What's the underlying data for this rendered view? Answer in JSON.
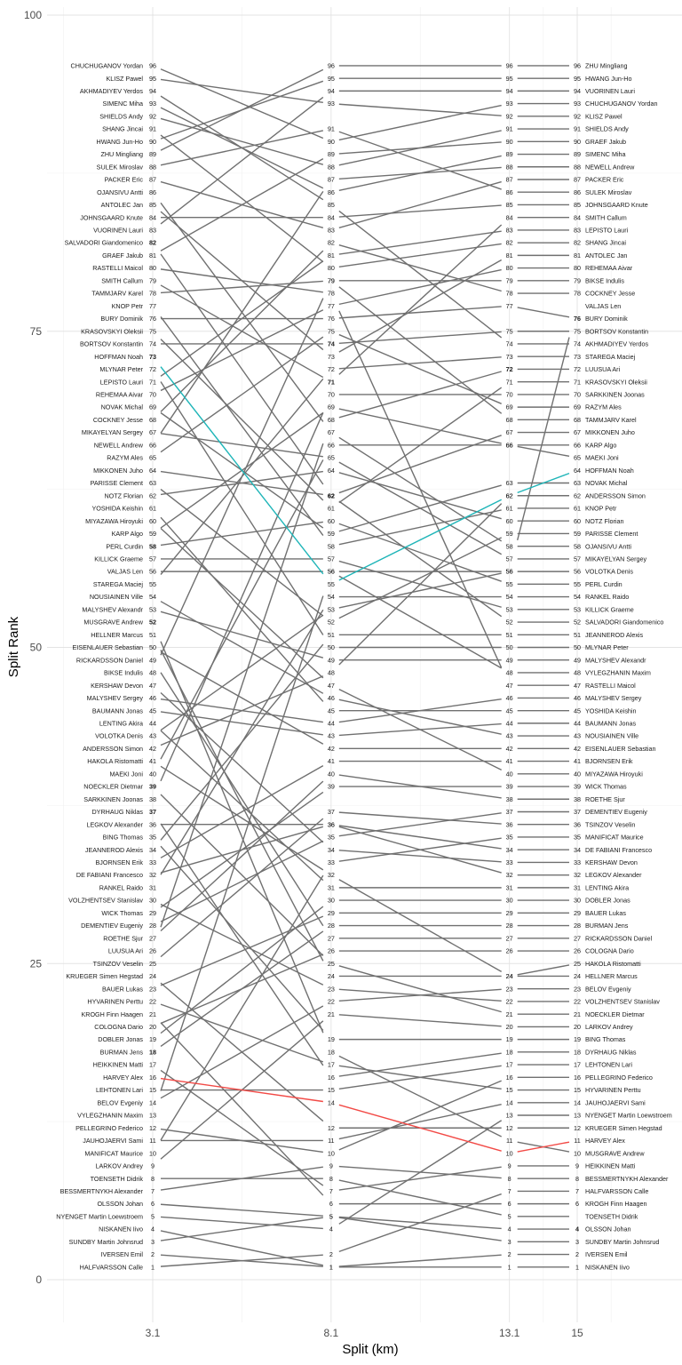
{
  "chart_data": {
    "type": "line",
    "title": "",
    "xlabel": "Split (km)",
    "ylabel": "Split Rank",
    "x": [
      3.1,
      8.1,
      13.1,
      15
    ],
    "x_tick_labels": [
      "3.1",
      "8.1",
      "13.1",
      "15"
    ],
    "xlim": [
      3.1,
      15
    ],
    "ylim": [
      0,
      100
    ],
    "y_ticks": [
      0,
      25,
      50,
      75,
      100
    ],
    "grid": true,
    "legend": "none",
    "colors": {
      "default_line": "#707070",
      "line_teal": "#1fb5b8",
      "line_red": "#f24a46",
      "grid_major": "#e3e3e3",
      "grid_minor": "#f0f0f0",
      "text": "#1a1a1a"
    },
    "series": [
      {
        "name": "HALFVARSSON Calle",
        "values": [
          1,
          2,
          7,
          7
        ]
      },
      {
        "name": "IVERSEN Emil",
        "values": [
          2,
          1,
          2,
          2
        ]
      },
      {
        "name": "SUNDBY Martin Johnsrud",
        "values": [
          3,
          5,
          3,
          3
        ]
      },
      {
        "name": "NISKANEN Iivo",
        "values": [
          4,
          1,
          1,
          1
        ]
      },
      {
        "name": "NYENGET Martin Loewstroem",
        "values": [
          5,
          4,
          13,
          13
        ]
      },
      {
        "name": "OLSSON Johan",
        "values": [
          6,
          5,
          4,
          4
        ]
      },
      {
        "name": "BESSMERTNYKH Alexander",
        "values": [
          7,
          9,
          8,
          8
        ]
      },
      {
        "name": "TOENSETH Didrik",
        "values": [
          8,
          8,
          5,
          5
        ]
      },
      {
        "name": "LARKOV Andrey",
        "values": [
          9,
          21,
          20,
          20
        ]
      },
      {
        "name": "MANIFICAT Maurice",
        "values": [
          10,
          33,
          35,
          35
        ]
      },
      {
        "name": "JAUHOJAERVI Sami",
        "values": [
          11,
          11,
          14,
          14
        ]
      },
      {
        "name": "PELLEGRINO Federico",
        "values": [
          12,
          10,
          16,
          16
        ]
      },
      {
        "name": "VYLEGZHANIN Maxim",
        "values": [
          13,
          56,
          48,
          48
        ]
      },
      {
        "name": "BELOV Evgeniy",
        "values": [
          14,
          22,
          23,
          23
        ]
      },
      {
        "name": "LEHTONEN Lari",
        "values": [
          15,
          15,
          17,
          17
        ]
      },
      {
        "name": "HARVEY Alex",
        "values": [
          16,
          14,
          10,
          11
        ]
      },
      {
        "name": "HEIKKINEN Matti",
        "values": [
          17,
          7,
          9,
          9
        ]
      },
      {
        "name": "BURMAN Jens",
        "values": [
          18,
          28,
          28,
          28
        ]
      },
      {
        "name": "DOBLER Jonas",
        "values": [
          19,
          30,
          30,
          30
        ]
      },
      {
        "name": "COLOGNA Dario",
        "values": [
          20,
          26,
          26,
          26
        ]
      },
      {
        "name": "KROGH Finn Haagen",
        "values": [
          21,
          6,
          6,
          6
        ]
      },
      {
        "name": "HYVARINEN Perttu",
        "values": [
          22,
          17,
          15,
          15
        ]
      },
      {
        "name": "BAUER Lukas",
        "values": [
          23,
          29,
          29,
          29
        ]
      },
      {
        "name": "KRUEGER Simen Hegstad",
        "values": [
          24,
          12,
          12,
          12
        ]
      },
      {
        "name": "TSINZOV Veselin",
        "values": [
          25,
          37,
          36,
          36
        ]
      },
      {
        "name": "LUUSUA Ari",
        "values": [
          26,
          68,
          72,
          72
        ]
      },
      {
        "name": "ROETHE Sjur",
        "values": [
          27,
          40,
          38,
          38
        ]
      },
      {
        "name": "DEMENTIEV Eugeniy",
        "values": [
          28,
          35,
          37,
          37
        ]
      },
      {
        "name": "WICK Thomas",
        "values": [
          29,
          39,
          39,
          39
        ]
      },
      {
        "name": "VOLZHENTSEV Stanislav",
        "values": [
          30,
          23,
          22,
          22
        ]
      },
      {
        "name": "RANKEL Raido",
        "values": [
          31,
          54,
          54,
          54
        ]
      },
      {
        "name": "DE FABIANI Francesco",
        "values": [
          32,
          36,
          34,
          34
        ]
      },
      {
        "name": "BJORNSEN Erik",
        "values": [
          33,
          41,
          41,
          41
        ]
      },
      {
        "name": "JEANNEROD Alexis",
        "values": [
          34,
          51,
          51,
          51
        ]
      },
      {
        "name": "BING Thomas",
        "values": [
          35,
          19,
          19,
          19
        ]
      },
      {
        "name": "LEGKOV Alexander",
        "values": [
          36,
          36,
          32,
          32
        ]
      },
      {
        "name": "DYRHAUG Niklas",
        "values": [
          37,
          16,
          18,
          18
        ]
      },
      {
        "name": "SARKKINEN Joonas",
        "values": [
          38,
          70,
          70,
          70
        ]
      },
      {
        "name": "NOECKLER Dietmar",
        "values": [
          39,
          25,
          21,
          21
        ]
      },
      {
        "name": "MAEKI Joni",
        "values": [
          40,
          66,
          66,
          65
        ]
      },
      {
        "name": "HAKOLA Ristomatti",
        "values": [
          41,
          32,
          24,
          25
        ]
      },
      {
        "name": "ANDERSSON Simon",
        "values": [
          42,
          48,
          62,
          62
        ]
      },
      {
        "name": "VOLOTKA Denis",
        "values": [
          43,
          53,
          56,
          56
        ]
      },
      {
        "name": "LENTING Akira",
        "values": [
          44,
          31,
          31,
          31
        ]
      },
      {
        "name": "BAUMANN Jonas",
        "values": [
          45,
          43,
          44,
          44
        ]
      },
      {
        "name": "MALYSHEV Sergey",
        "values": [
          46,
          44,
          46,
          46
        ]
      },
      {
        "name": "KERSHAW Devon",
        "values": [
          47,
          34,
          33,
          33
        ]
      },
      {
        "name": "BIKSE Indulis",
        "values": [
          48,
          79,
          79,
          79
        ]
      },
      {
        "name": "RICKARDSSON Daniel",
        "values": [
          49,
          27,
          27,
          27
        ]
      },
      {
        "name": "EISENLAUER Sebastian",
        "values": [
          50,
          42,
          42,
          42
        ]
      },
      {
        "name": "HELLNER Marcus",
        "values": [
          51,
          24,
          24,
          24
        ]
      },
      {
        "name": "MUSGRAVE Andrew",
        "values": [
          52,
          18,
          11,
          10
        ]
      },
      {
        "name": "MALYSHEV Alexandr",
        "values": [
          53,
          49,
          49,
          49
        ]
      },
      {
        "name": "NOUSIAINEN Ville",
        "values": [
          54,
          46,
          43,
          43
        ]
      },
      {
        "name": "STAREGA Maciej",
        "values": [
          55,
          72,
          73,
          73
        ]
      },
      {
        "name": "VALJAS Len",
        "values": [
          56,
          56,
          56,
          77
        ]
      },
      {
        "name": "KILLICK Graeme",
        "values": [
          57,
          57,
          53,
          53
        ]
      },
      {
        "name": "PERL Curdin",
        "values": [
          58,
          60,
          55,
          55
        ]
      },
      {
        "name": "KARP Algo",
        "values": [
          59,
          69,
          66,
          66
        ]
      },
      {
        "name": "MIYAZAWA Hiroyuki",
        "values": [
          60,
          47,
          40,
          40
        ]
      },
      {
        "name": "YOSHIDA Keishin",
        "values": [
          61,
          45,
          45,
          45
        ]
      },
      {
        "name": "NOTZ Florian",
        "values": [
          62,
          64,
          60,
          60
        ]
      },
      {
        "name": "PARISSE Clement",
        "values": [
          63,
          52,
          59,
          59
        ]
      },
      {
        "name": "MIKKONEN Juho",
        "values": [
          64,
          62,
          67,
          67
        ]
      },
      {
        "name": "RAZYM Ales",
        "values": [
          65,
          75,
          69,
          69
        ]
      },
      {
        "name": "NEWELL Andrew",
        "values": [
          66,
          87,
          88,
          88
        ]
      },
      {
        "name": "MIKAYELYAN Sergey",
        "values": [
          67,
          65,
          57,
          57
        ]
      },
      {
        "name": "COCKNEY Jesse",
        "values": [
          68,
          82,
          78,
          78
        ]
      },
      {
        "name": "NOVAK Michal",
        "values": [
          69,
          59,
          63,
          63
        ]
      },
      {
        "name": "REHEMAA Aivar",
        "values": [
          70,
          77,
          80,
          80
        ]
      },
      {
        "name": "LEPISTO Lauri",
        "values": [
          71,
          81,
          83,
          83
        ]
      },
      {
        "name": "MLYNAR Peter",
        "values": [
          72,
          50,
          50,
          50
        ]
      },
      {
        "name": "HOFFMAN Noah",
        "values": [
          73,
          55,
          62,
          64
        ]
      },
      {
        "name": "BORTSOV Konstantin",
        "values": [
          74,
          74,
          75,
          75
        ]
      },
      {
        "name": "KRASOVSKYI Oleksii",
        "values": [
          75,
          61,
          71,
          71
        ]
      },
      {
        "name": "BURY Dominik",
        "values": [
          76,
          76,
          77,
          76
        ]
      },
      {
        "name": "KNOP Petr",
        "values": [
          77,
          58,
          61,
          61
        ]
      },
      {
        "name": "TAMMJARV Karel",
        "values": [
          78,
          79,
          68,
          68
        ]
      },
      {
        "name": "SMITH Callum",
        "values": [
          79,
          71,
          84,
          84
        ]
      },
      {
        "name": "RASTELLI Maicol",
        "values": [
          80,
          78,
          47,
          47
        ]
      },
      {
        "name": "GRAEF Jakub",
        "values": [
          81,
          89,
          90,
          90
        ]
      },
      {
        "name": "SALVADORI Giandomenico",
        "values": [
          82,
          62,
          52,
          52
        ]
      },
      {
        "name": "VUORINEN Lauri",
        "values": [
          83,
          94,
          94,
          94
        ]
      },
      {
        "name": "JOHNSGAARD Knute",
        "values": [
          84,
          84,
          85,
          85
        ]
      },
      {
        "name": "ANTOLEC Jan",
        "values": [
          85,
          73,
          81,
          81
        ]
      },
      {
        "name": "OJANSIVU Antti",
        "values": [
          86,
          67,
          58,
          58
        ]
      },
      {
        "name": "PACKER Eric",
        "values": [
          87,
          83,
          87,
          87
        ]
      },
      {
        "name": "SULEK Miroslav",
        "values": [
          88,
          91,
          86,
          86
        ]
      },
      {
        "name": "ZHU Mingliang",
        "values": [
          89,
          96,
          96,
          96
        ]
      },
      {
        "name": "HWANG Jun-Ho",
        "values": [
          90,
          95,
          95,
          95
        ]
      },
      {
        "name": "SHANG Jincai",
        "values": [
          91,
          80,
          82,
          82
        ]
      },
      {
        "name": "SHIELDS Andy",
        "values": [
          92,
          88,
          91,
          91
        ]
      },
      {
        "name": "SIMENC Miha",
        "values": [
          93,
          86,
          89,
          89
        ]
      },
      {
        "name": "AKHMADIYEV Yerdos",
        "values": [
          94,
          85,
          74,
          74
        ]
      },
      {
        "name": "KLISZ Pawel",
        "values": [
          95,
          93,
          92,
          92
        ]
      },
      {
        "name": "CHUCHUGANOV Yordan",
        "values": [
          96,
          90,
          93,
          93
        ]
      }
    ],
    "highlighted_series": {
      "HOFFMAN Noah": "teal",
      "HARVEY Alex": "red"
    },
    "bold_rank_labels": {
      "3.1": [
        82,
        73,
        58,
        52,
        39,
        37,
        18
      ],
      "8.1": [
        74,
        71,
        62
      ],
      "13.1": [
        72
      ],
      "15": [
        76,
        4
      ]
    },
    "hidden_rank_labels": {
      "15": [
        77,
        5
      ]
    }
  }
}
